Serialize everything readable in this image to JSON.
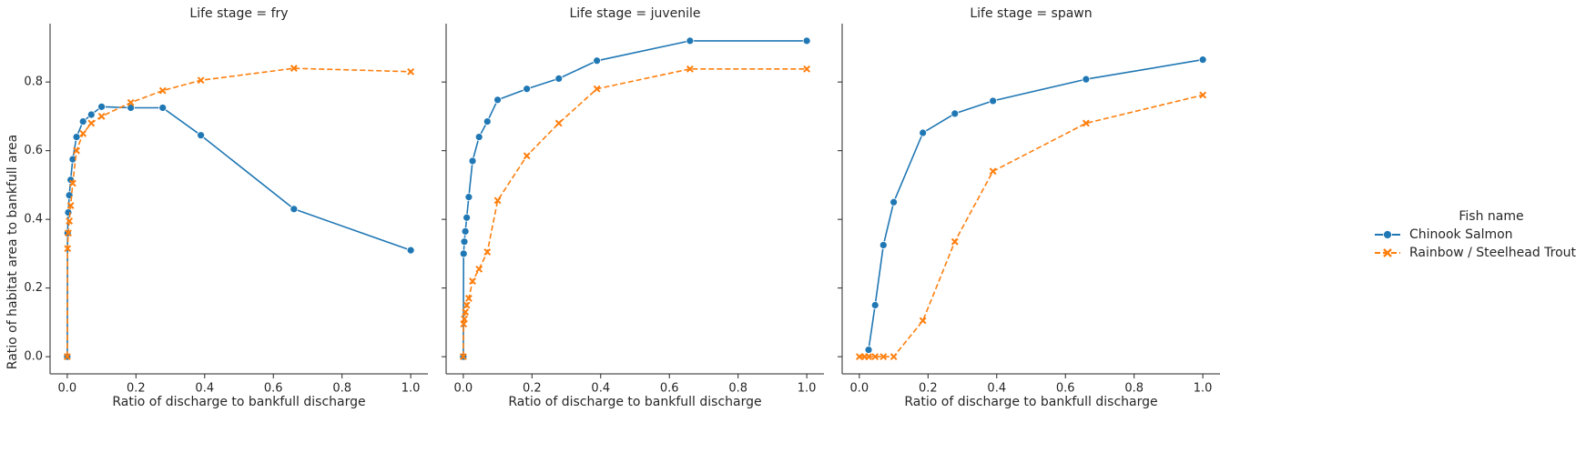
{
  "chart_data": {
    "type": "line",
    "ylabel": "Ratio of habitat area to bankfull area",
    "xlabel": "Ratio of discharge to bankfull discharge",
    "xlim": [
      -0.05,
      1.05
    ],
    "ylim": [
      -0.05,
      0.97
    ],
    "xticks": [
      "0.0",
      "0.2",
      "0.4",
      "0.6",
      "0.8",
      "1.0"
    ],
    "yticks": [
      "0.0",
      "0.2",
      "0.4",
      "0.6",
      "0.8"
    ],
    "legend": {
      "title": "Fish name",
      "position": "right",
      "entries": [
        "Chinook Salmon",
        "Rainbow / Steelhead Trout"
      ]
    },
    "colors": {
      "Chinook Salmon": "#1f77b4",
      "Rainbow / Steelhead Trout": "#ff7f0e"
    },
    "panels": [
      {
        "title": "Life stage = fry",
        "series": [
          {
            "name": "Chinook Salmon",
            "marker": "circle",
            "dash": "solid",
            "x": [
              0.0,
              0.001,
              0.003,
              0.006,
              0.01,
              0.016,
              0.027,
              0.046,
              0.07,
              0.1,
              0.185,
              0.278,
              0.389,
              0.66,
              1.0
            ],
            "y": [
              0.0,
              0.36,
              0.42,
              0.47,
              0.515,
              0.575,
              0.64,
              0.685,
              0.705,
              0.728,
              0.725,
              0.725,
              0.645,
              0.43,
              0.31
            ]
          },
          {
            "name": "Rainbow / Steelhead Trout",
            "marker": "x",
            "dash": "dashed",
            "x": [
              0.0,
              0.001,
              0.003,
              0.006,
              0.01,
              0.016,
              0.027,
              0.046,
              0.07,
              0.1,
              0.185,
              0.278,
              0.389,
              0.66,
              1.0
            ],
            "y": [
              0.0,
              0.315,
              0.36,
              0.395,
              0.44,
              0.505,
              0.6,
              0.65,
              0.68,
              0.7,
              0.74,
              0.775,
              0.805,
              0.84,
              0.83
            ]
          }
        ]
      },
      {
        "title": "Life stage = juvenile",
        "series": [
          {
            "name": "Chinook Salmon",
            "marker": "circle",
            "dash": "solid",
            "x": [
              0.0,
              0.001,
              0.003,
              0.006,
              0.01,
              0.016,
              0.027,
              0.046,
              0.07,
              0.1,
              0.185,
              0.278,
              0.389,
              0.66,
              1.0
            ],
            "y": [
              0.0,
              0.3,
              0.335,
              0.365,
              0.405,
              0.465,
              0.57,
              0.64,
              0.685,
              0.748,
              0.78,
              0.81,
              0.862,
              0.92,
              0.92
            ]
          },
          {
            "name": "Rainbow / Steelhead Trout",
            "marker": "x",
            "dash": "dashed",
            "x": [
              0.0,
              0.001,
              0.003,
              0.006,
              0.01,
              0.016,
              0.027,
              0.046,
              0.07,
              0.1,
              0.185,
              0.278,
              0.389,
              0.66,
              1.0
            ],
            "y": [
              0.0,
              0.095,
              0.11,
              0.13,
              0.15,
              0.17,
              0.22,
              0.255,
              0.305,
              0.455,
              0.585,
              0.68,
              0.78,
              0.838,
              0.838
            ]
          }
        ]
      },
      {
        "title": "Life stage = spawn",
        "series": [
          {
            "name": "Chinook Salmon",
            "marker": "circle",
            "dash": "solid",
            "x": [
              0.027,
              0.046,
              0.07,
              0.1,
              0.185,
              0.278,
              0.389,
              0.66,
              1.0
            ],
            "y": [
              0.02,
              0.15,
              0.325,
              0.45,
              0.652,
              0.708,
              0.745,
              0.808,
              0.865
            ]
          },
          {
            "name": "Rainbow / Steelhead Trout",
            "marker": "x",
            "dash": "dashed",
            "x": [
              0.0,
              0.016,
              0.027,
              0.046,
              0.07,
              0.1,
              0.185,
              0.278,
              0.389,
              0.66,
              1.0
            ],
            "y": [
              0.0,
              0.0,
              0.0,
              0.0,
              0.0,
              0.0,
              0.105,
              0.335,
              0.54,
              0.68,
              0.762
            ]
          }
        ]
      }
    ]
  }
}
